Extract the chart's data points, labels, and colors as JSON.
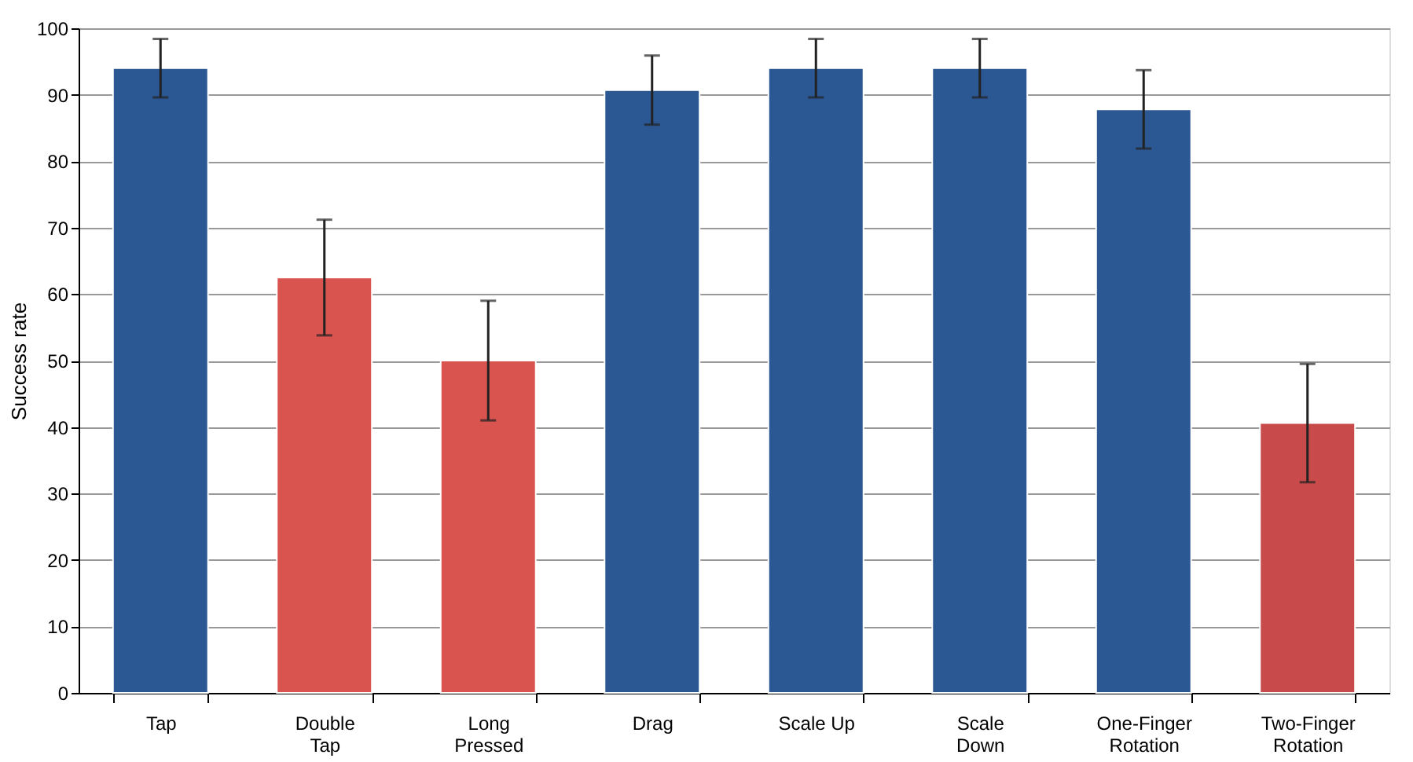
{
  "chart_data": {
    "type": "bar",
    "categories": [
      "Tap",
      "Double Tap",
      "Long Pressed",
      "Drag",
      "Scale Up",
      "Scale Down",
      "One-Finger Rotation",
      "Two-Finger Rotation"
    ],
    "values": [
      94,
      62.5,
      50,
      90.7,
      94,
      94,
      87.8,
      40.6
    ],
    "errors": [
      4.4,
      8.7,
      9,
      5.2,
      4.4,
      4.4,
      5.9,
      8.9
    ],
    "colors": [
      "#2b5793",
      "#d9534f",
      "#d9534f",
      "#2b5793",
      "#2b5793",
      "#2b5793",
      "#2b5793",
      "#c84a4a"
    ],
    "ylabel": "Success rate",
    "ylim": [
      0,
      100
    ],
    "yticks": [
      0,
      10,
      20,
      30,
      40,
      50,
      60,
      70,
      80,
      90,
      100
    ],
    "grid": "y"
  }
}
